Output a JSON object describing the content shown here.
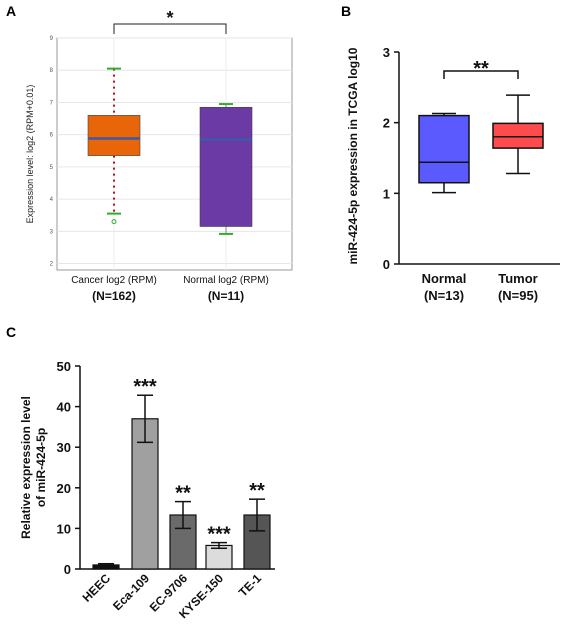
{
  "panels": {
    "A": {
      "label": "A"
    },
    "B": {
      "label": "B"
    },
    "C": {
      "label": "C"
    }
  },
  "chart_data": [
    {
      "panel": "A",
      "type": "box",
      "ylabel": "Expression level: log2 (RPM+0.01)",
      "ylim": [
        1.8,
        9.0
      ],
      "yticks": [
        "2",
        "3",
        "4",
        "5",
        "6",
        "7",
        "8",
        "9"
      ],
      "grid": true,
      "significance": "*",
      "series": [
        {
          "category": "Cancer log2 (RPM)",
          "n_label": "(N=162)",
          "color": "#e8650a",
          "whisker_low": 3.55,
          "q1": 5.35,
          "median": 5.88,
          "q3": 6.6,
          "whisker_high": 8.05,
          "outliers": [
            3.3
          ]
        },
        {
          "category": "Normal log2 (RPM)",
          "n_label": "(N=11)",
          "color": "#6b3aa5",
          "whisker_low": 2.92,
          "q1": 3.15,
          "median": 5.85,
          "q3": 6.85,
          "whisker_high": 6.95,
          "outliers": []
        }
      ]
    },
    {
      "panel": "B",
      "type": "box",
      "ylabel": "miR-424-5p expression in TCGA log10",
      "ylim": [
        0,
        3
      ],
      "yticks": [
        "0",
        "1",
        "2",
        "3"
      ],
      "significance": "**",
      "series": [
        {
          "category": "Normal",
          "n_label": "(N=13)",
          "color": "#5a5aff",
          "whisker_low": 1.01,
          "q1": 1.15,
          "median": 1.44,
          "q3": 2.1,
          "whisker_high": 2.13
        },
        {
          "category": "Tumor",
          "n_label": "(N=95)",
          "color": "#ff4b4b",
          "whisker_low": 1.28,
          "q1": 1.64,
          "median": 1.8,
          "q3": 1.99,
          "whisker_high": 2.39
        }
      ]
    },
    {
      "panel": "C",
      "type": "bar",
      "ylabel": "Relative expression level of miR-424-5p",
      "ylim": [
        0,
        50
      ],
      "yticks": [
        "0",
        "10",
        "20",
        "30",
        "40",
        "50"
      ],
      "categories": [
        "HEEC",
        "Eca-109",
        "EC-9706",
        "KYSE-150",
        "TE-1"
      ],
      "values": [
        1.0,
        37.0,
        13.3,
        5.8,
        13.3
      ],
      "errors": [
        0.3,
        5.8,
        3.3,
        0.7,
        3.9
      ],
      "significance": [
        "",
        "***",
        "**",
        "***",
        "**"
      ],
      "colors": [
        "#111111",
        "#a0a0a0",
        "#6a6a6a",
        "#dcdcdc",
        "#555555"
      ]
    }
  ]
}
